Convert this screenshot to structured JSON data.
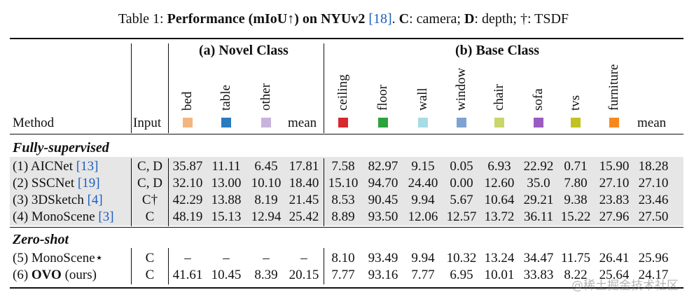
{
  "caption": {
    "prefix": "Table 1: ",
    "bold_title": "Performance (mIoU↑) on NYUv2",
    "ref": "[18]",
    "rest1": ". ",
    "c_key": "C",
    "c_text": ": camera; ",
    "d_key": "D",
    "d_text": ": depth; †: TSDF"
  },
  "header": {
    "method": "Method",
    "input": "Input",
    "group_novel": "(a) Novel Class",
    "group_base": "(b) Base Class",
    "novel_classes": [
      {
        "name": "bed",
        "color": "#f4b67f"
      },
      {
        "name": "table",
        "color": "#2b7bbf"
      },
      {
        "name": "other",
        "color": "#c9b3dc"
      }
    ],
    "novel_mean": "mean",
    "base_classes": [
      {
        "name": "ceiling",
        "color": "#d7282e"
      },
      {
        "name": "floor",
        "color": "#2aa33b"
      },
      {
        "name": "wall",
        "color": "#a7dce6"
      },
      {
        "name": "window",
        "color": "#7fa3d1"
      },
      {
        "name": "chair",
        "color": "#c9d66a"
      },
      {
        "name": "sofa",
        "color": "#9b5bc1"
      },
      {
        "name": "tvs",
        "color": "#c2c224"
      },
      {
        "name": "furniture",
        "color": "#f7891c"
      }
    ],
    "base_mean": "mean"
  },
  "sections": [
    {
      "title": "Fully-supervised",
      "rows": [
        {
          "method": "(1) AICNet",
          "ref": "[13]",
          "input": "C, D",
          "novel": [
            "35.87",
            "11.11",
            "6.45",
            "17.81"
          ],
          "base": [
            "7.58",
            "82.97",
            "9.15",
            "0.05",
            "6.93",
            "22.92",
            "0.71",
            "15.90",
            "18.28"
          ]
        },
        {
          "method": "(2) SSCNet",
          "ref": "[19]",
          "input": "C, D",
          "novel": [
            "32.10",
            "13.00",
            "10.10",
            "18.40"
          ],
          "base": [
            "15.10",
            "94.70",
            "24.40",
            "0.00",
            "12.60",
            "35.0",
            "7.80",
            "27.10",
            "27.10"
          ]
        },
        {
          "method": "(3) 3DSketch",
          "ref": "[4]",
          "input": "C†",
          "novel": [
            "42.29",
            "13.88",
            "8.19",
            "21.45"
          ],
          "base": [
            "8.53",
            "90.45",
            "9.94",
            "5.67",
            "10.64",
            "29.21",
            "9.38",
            "23.83",
            "23.46"
          ]
        },
        {
          "method": "(4) MonoScene",
          "ref": "[3]",
          "input": "C",
          "novel": [
            "48.19",
            "15.13",
            "12.94",
            "25.42"
          ],
          "base": [
            "8.89",
            "93.50",
            "12.06",
            "12.57",
            "13.72",
            "36.11",
            "15.22",
            "27.96",
            "27.50"
          ]
        }
      ]
    },
    {
      "title": "Zero-shot",
      "rows": [
        {
          "method": "(5) MonoScene⋆",
          "ref": "",
          "input": "C",
          "novel": [
            "–",
            "–",
            "–",
            "–"
          ],
          "base": [
            "8.10",
            "93.49",
            "9.94",
            "10.32",
            "13.24",
            "34.47",
            "11.75",
            "26.41",
            "25.96"
          ]
        },
        {
          "method_prefix": "(6) ",
          "method_bold": "OVO",
          "method_suffix": " (ours)",
          "ref": "",
          "input": "C",
          "novel": [
            "41.61",
            "10.45",
            "8.39",
            "20.15"
          ],
          "base": [
            "7.77",
            "93.16",
            "7.77",
            "6.95",
            "10.01",
            "33.83",
            "8.22",
            "25.64",
            "24.17"
          ]
        }
      ]
    }
  ],
  "watermark": "@稀土掘金技术社区"
}
